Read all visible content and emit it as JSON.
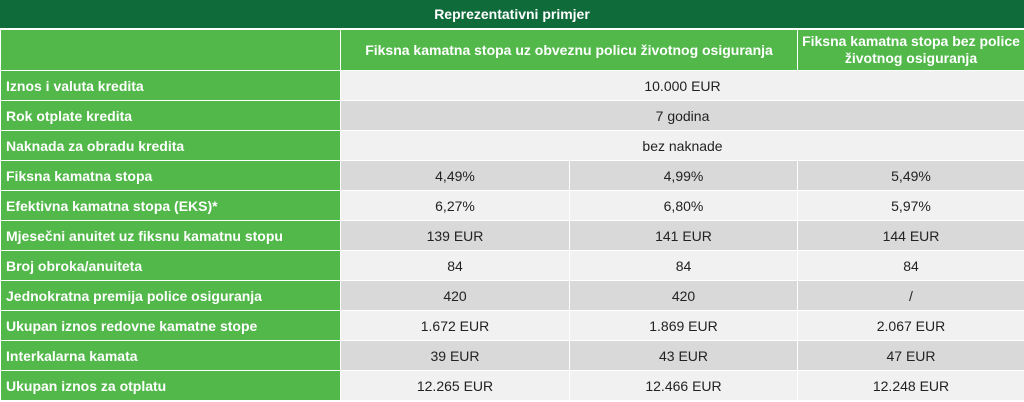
{
  "title": "Reprezentativni primjer",
  "headers": {
    "col1": "Fiksna kamatna stopa uz obveznu policu životnog osiguranja",
    "col2": "Fiksna kamatna stopa bez police životnog osiguranja"
  },
  "rows": {
    "iznos": {
      "label": "Iznos i valuta kredita",
      "value": "10.000 EUR"
    },
    "rok": {
      "label": "Rok otplate kredita",
      "value": "7 godina"
    },
    "naknada": {
      "label": "Naknada za obradu kredita",
      "value": "bez naknade"
    },
    "fiksna": {
      "label": "Fiksna kamatna stopa",
      "values": [
        "4,49%",
        "4,99%",
        "5,49%"
      ]
    },
    "eks": {
      "label": "Efektivna kamatna stopa (EKS)*",
      "values": [
        "6,27%",
        "6,80%",
        "5,97%"
      ]
    },
    "anuitet": {
      "label": "Mjesečni anuitet uz fiksnu kamatnu stopu",
      "values": [
        "139 EUR",
        "141 EUR",
        "144 EUR"
      ]
    },
    "obroci": {
      "label": "Broj obroka/anuiteta",
      "values": [
        "84",
        "84",
        "84"
      ]
    },
    "premija": {
      "label": "Jednokratna premija police osiguranja",
      "values": [
        "420",
        "420",
        "/"
      ]
    },
    "kamata": {
      "label": "Ukupan iznos redovne kamatne stope",
      "values": [
        "1.672 EUR",
        "1.869 EUR",
        "2.067 EUR"
      ]
    },
    "interkal": {
      "label": "Interkalarna kamata",
      "values": [
        "39 EUR",
        "43 EUR",
        "47 EUR"
      ]
    },
    "ukupno": {
      "label": "Ukupan iznos za otplatu",
      "values": [
        "12.265 EUR",
        "12.466 EUR",
        "12.248 EUR"
      ]
    }
  },
  "colors": {
    "title_bg": "#0f6b3a",
    "label_bg": "#52b84a",
    "row_light": "#f1f1f1",
    "row_dark": "#d9d9d9"
  }
}
